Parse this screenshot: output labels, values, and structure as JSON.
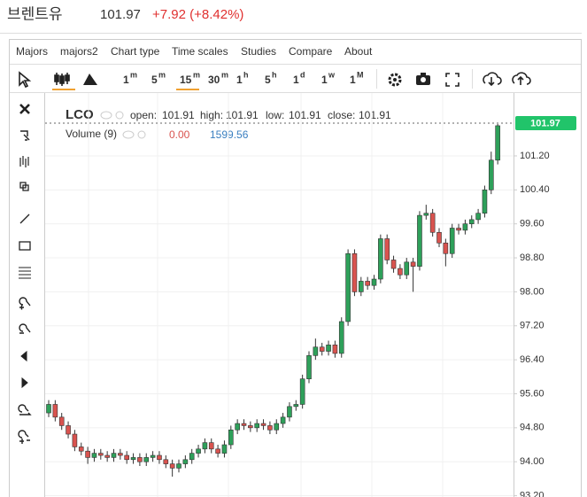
{
  "header": {
    "title": "브렌트유",
    "price": "101.97",
    "change": "+7.92 (+8.42%)"
  },
  "menu": [
    "Majors",
    "majors2",
    "Chart type",
    "Time scales",
    "Studies",
    "Compare",
    "About"
  ],
  "timeframes": [
    {
      "n": "1",
      "u": "m"
    },
    {
      "n": "5",
      "u": "m"
    },
    {
      "n": "15",
      "u": "m"
    },
    {
      "n": "30",
      "u": "m"
    },
    {
      "n": "1",
      "u": "h"
    },
    {
      "n": "5",
      "u": "h"
    },
    {
      "n": "1",
      "u": "d"
    },
    {
      "n": "1",
      "u": "w"
    },
    {
      "n": "1",
      "u": "M"
    }
  ],
  "legend": {
    "symbol": "LCO",
    "open_label": "open:",
    "open": "101.91",
    "high_label": "high:",
    "high": "101.91",
    "low_label": "low:",
    "low": "101.91",
    "close_label": "close:",
    "close": "101.91",
    "volume_label": "Volume (9)",
    "volume_a": "0.00",
    "volume_b": "1599.56"
  },
  "chart_data": {
    "type": "candlestick",
    "up_color": "#2ea05a",
    "down_color": "#d9534f",
    "grid": true,
    "last_price": 101.97,
    "last_color": "#21c46a",
    "ylim": [
      93.17,
      102.68
    ],
    "yticks": [
      {
        "value": 93.2,
        "label": "93.20"
      },
      {
        "value": 94,
        "label": "94.00"
      },
      {
        "value": 94.8,
        "label": "94.80"
      },
      {
        "value": 95.6,
        "label": "95.60"
      },
      {
        "value": 96.4,
        "label": "96.40"
      },
      {
        "value": 97.2,
        "label": "97.20"
      },
      {
        "value": 98,
        "label": "98.00"
      },
      {
        "value": 98.8,
        "label": "98.80"
      },
      {
        "value": 99.6,
        "label": "99.60"
      },
      {
        "value": 100.4,
        "label": "100.40"
      },
      {
        "value": 101.2,
        "label": "101.20"
      }
    ],
    "open": [
      95.15,
      95.35,
      95.05,
      94.85,
      94.65,
      94.35,
      94.25,
      94.1,
      94.2,
      94.15,
      94.1,
      94.2,
      94.15,
      94.05,
      94.1,
      94.0,
      94.1,
      94.15,
      94.05,
      93.95,
      93.85,
      93.95,
      94.05,
      94.2,
      94.3,
      94.45,
      94.3,
      94.2,
      94.4,
      94.75,
      94.9,
      94.85,
      94.8,
      94.9,
      94.85,
      94.75,
      94.9,
      95.05,
      95.3,
      95.35,
      95.95,
      96.5,
      96.7,
      96.6,
      96.75,
      96.55,
      97.3,
      98.9,
      98.0,
      98.25,
      98.15,
      98.3,
      99.25,
      98.75,
      98.55,
      98.4,
      98.7,
      98.6,
      99.8,
      99.85,
      99.4,
      99.15,
      98.9,
      99.5,
      99.45,
      99.6,
      99.7,
      99.85,
      100.4,
      101.1
    ],
    "high": [
      95.45,
      95.45,
      95.15,
      94.95,
      94.75,
      94.45,
      94.35,
      94.3,
      94.3,
      94.25,
      94.3,
      94.3,
      94.25,
      94.2,
      94.2,
      94.2,
      94.25,
      94.25,
      94.15,
      94.05,
      94.05,
      94.15,
      94.3,
      94.4,
      94.55,
      94.55,
      94.4,
      94.5,
      94.85,
      95.0,
      95.0,
      94.95,
      95.0,
      95.0,
      94.95,
      95.0,
      95.15,
      95.4,
      95.45,
      96.05,
      96.6,
      96.9,
      96.8,
      96.85,
      96.85,
      97.4,
      99.0,
      99.0,
      98.35,
      98.35,
      98.4,
      99.35,
      99.35,
      98.85,
      98.65,
      98.8,
      98.8,
      99.9,
      100.05,
      99.95,
      99.5,
      99.25,
      99.6,
      99.6,
      99.7,
      99.8,
      99.95,
      100.5,
      101.3,
      101.95
    ],
    "low": [
      95.05,
      94.95,
      94.75,
      94.55,
      94.25,
      94.15,
      93.95,
      94.0,
      94.05,
      94.0,
      94.0,
      94.05,
      93.95,
      93.95,
      93.9,
      93.9,
      94.0,
      93.95,
      93.85,
      93.65,
      93.75,
      93.85,
      93.95,
      94.1,
      94.2,
      94.2,
      94.1,
      94.1,
      94.3,
      94.65,
      94.75,
      94.7,
      94.7,
      94.75,
      94.65,
      94.65,
      94.8,
      94.95,
      95.2,
      95.25,
      95.85,
      96.4,
      96.5,
      96.5,
      96.45,
      96.45,
      97.2,
      97.9,
      97.9,
      98.05,
      98.05,
      98.2,
      98.65,
      98.45,
      98.3,
      98.3,
      98.0,
      98.5,
      99.7,
      99.3,
      99.05,
      98.6,
      98.8,
      99.35,
      99.35,
      99.5,
      99.6,
      99.75,
      100.3,
      101.0
    ],
    "close": [
      95.35,
      95.05,
      94.85,
      94.65,
      94.35,
      94.25,
      94.1,
      94.2,
      94.15,
      94.1,
      94.2,
      94.15,
      94.05,
      94.1,
      94.0,
      94.1,
      94.15,
      94.05,
      93.95,
      93.85,
      93.95,
      94.05,
      94.2,
      94.3,
      94.45,
      94.3,
      94.2,
      94.4,
      94.75,
      94.9,
      94.85,
      94.8,
      94.9,
      94.85,
      94.75,
      94.9,
      95.05,
      95.3,
      95.35,
      95.95,
      96.5,
      96.7,
      96.6,
      96.75,
      96.55,
      97.3,
      98.9,
      98.0,
      98.25,
      98.15,
      98.3,
      99.25,
      98.75,
      98.55,
      98.4,
      98.7,
      98.6,
      99.8,
      99.85,
      99.4,
      99.15,
      98.9,
      99.5,
      99.45,
      99.6,
      99.7,
      99.85,
      100.4,
      101.1,
      101.91
    ]
  }
}
